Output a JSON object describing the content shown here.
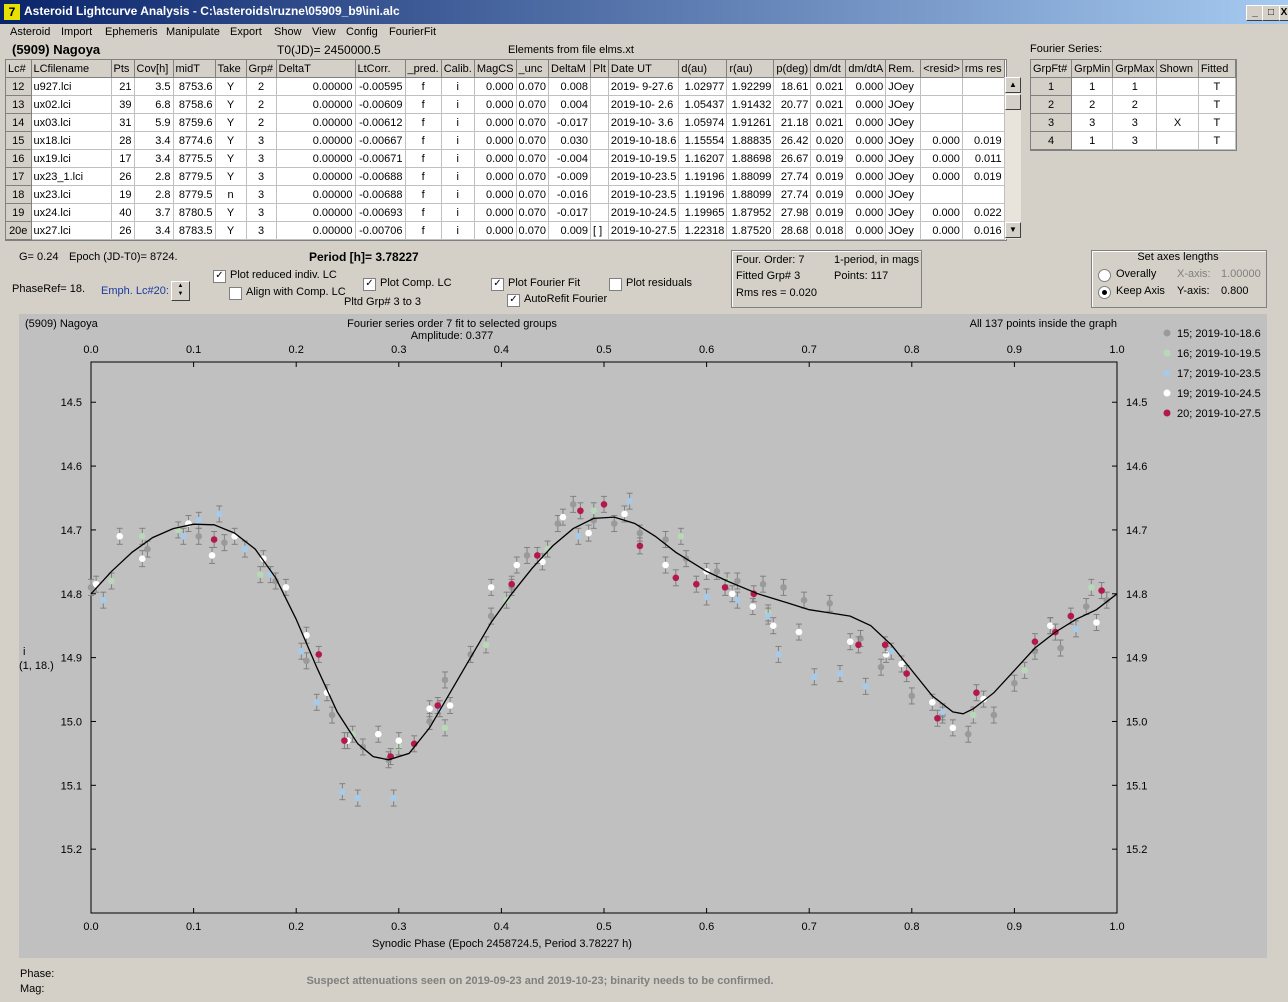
{
  "window": {
    "title": "Asteroid Lightcurve Analysis - C:\\asteroids\\ruzne\\05909_b9\\ini.alc",
    "icon_glyph": "7",
    "btn_min": "_",
    "btn_max": "□",
    "btn_close": "X"
  },
  "menu": [
    "Asteroid",
    "Import",
    "Ephemeris",
    "Manipulate",
    "Export",
    "Show",
    "View",
    "Config",
    "FourierFit"
  ],
  "header": {
    "asteroid_name": "(5909) Nagoya",
    "t0": "T0(JD)= 2450000.5",
    "elements": "Elements from file elms.xt",
    "fourier_series_label": "Fourier Series:"
  },
  "lc_table": {
    "columns": [
      "Lc#",
      "LCfilename",
      "Pts",
      "Cov[h]",
      "midT",
      "Take",
      "Grp#",
      "DeltaT",
      "LtCorr.",
      "_pred.",
      "Calib.",
      "MagCS",
      "_unc",
      "DeltaM",
      "Plt",
      "Date UT",
      "d(au)",
      "r(au)",
      "p(deg)",
      "dm/dt",
      "dm/dtA",
      "Rem.",
      "<resid>",
      "rms res"
    ],
    "rows": [
      [
        "12",
        "u927.lci",
        "21",
        "3.5",
        "8753.6",
        "Y",
        "2",
        "0.00000",
        "-0.00595",
        "f",
        "i",
        "0.000",
        "0.070",
        "0.008",
        "",
        "2019- 9-27.6",
        "1.02977",
        "1.92299",
        "18.61",
        "0.021",
        "0.000",
        "JOey",
        "",
        ""
      ],
      [
        "13",
        "ux02.lci",
        "39",
        "6.8",
        "8758.6",
        "Y",
        "2",
        "0.00000",
        "-0.00609",
        "f",
        "i",
        "0.000",
        "0.070",
        "0.004",
        "",
        "2019-10- 2.6",
        "1.05437",
        "1.91432",
        "20.77",
        "0.021",
        "0.000",
        "JOey",
        "",
        ""
      ],
      [
        "14",
        "ux03.lci",
        "31",
        "5.9",
        "8759.6",
        "Y",
        "2",
        "0.00000",
        "-0.00612",
        "f",
        "i",
        "0.000",
        "0.070",
        "-0.017",
        "",
        "2019-10- 3.6",
        "1.05974",
        "1.91261",
        "21.18",
        "0.021",
        "0.000",
        "JOey",
        "",
        ""
      ],
      [
        "15",
        "ux18.lci",
        "28",
        "3.4",
        "8774.6",
        "Y",
        "3",
        "0.00000",
        "-0.00667",
        "f",
        "i",
        "0.000",
        "0.070",
        "0.030",
        "",
        "2019-10-18.6",
        "1.15554",
        "1.88835",
        "26.42",
        "0.020",
        "0.000",
        "JOey",
        "0.000",
        "0.019"
      ],
      [
        "16",
        "ux19.lci",
        "17",
        "3.4",
        "8775.5",
        "Y",
        "3",
        "0.00000",
        "-0.00671",
        "f",
        "i",
        "0.000",
        "0.070",
        "-0.004",
        "",
        "2019-10-19.5",
        "1.16207",
        "1.88698",
        "26.67",
        "0.019",
        "0.000",
        "JOey",
        "0.000",
        "0.011"
      ],
      [
        "17",
        "ux23_1.lci",
        "26",
        "2.8",
        "8779.5",
        "Y",
        "3",
        "0.00000",
        "-0.00688",
        "f",
        "i",
        "0.000",
        "0.070",
        "-0.009",
        "",
        "2019-10-23.5",
        "1.19196",
        "1.88099",
        "27.74",
        "0.019",
        "0.000",
        "JOey",
        "0.000",
        "0.019"
      ],
      [
        "18",
        "ux23.lci",
        "19",
        "2.8",
        "8779.5",
        "n",
        "3",
        "0.00000",
        "-0.00688",
        "f",
        "i",
        "0.000",
        "0.070",
        "-0.016",
        "",
        "2019-10-23.5",
        "1.19196",
        "1.88099",
        "27.74",
        "0.019",
        "0.000",
        "JOey",
        "",
        ""
      ],
      [
        "19",
        "ux24.lci",
        "40",
        "3.7",
        "8780.5",
        "Y",
        "3",
        "0.00000",
        "-0.00693",
        "f",
        "i",
        "0.000",
        "0.070",
        "-0.017",
        "",
        "2019-10-24.5",
        "1.19965",
        "1.87952",
        "27.98",
        "0.019",
        "0.000",
        "JOey",
        "0.000",
        "0.022"
      ],
      [
        "20e",
        "ux27.lci",
        "26",
        "3.4",
        "8783.5",
        "Y",
        "3",
        "0.00000",
        "-0.00706",
        "f",
        "i",
        "0.000",
        "0.070",
        "0.009",
        "[ ]",
        "2019-10-27.5",
        "1.22318",
        "1.87520",
        "28.68",
        "0.018",
        "0.000",
        "JOey",
        "0.000",
        "0.016"
      ]
    ]
  },
  "fourier_table": {
    "columns": [
      "GrpFt#",
      "GrpMin",
      "GrpMax",
      "Shown",
      "Fitted"
    ],
    "rows": [
      [
        "1",
        "1",
        "1",
        "",
        "T"
      ],
      [
        "2",
        "2",
        "2",
        "",
        "T"
      ],
      [
        "3",
        "3",
        "3",
        "X",
        "T"
      ],
      [
        "4",
        "1",
        "3",
        "",
        "T"
      ]
    ]
  },
  "controls": {
    "g_value": "G= 0.24",
    "epoch": "Epoch (JD-T0)= 8724.",
    "period": "Period [h]= 3.78227",
    "phase_ref": "PhaseRef= 18.",
    "emph_lc": "Emph. Lc#20:",
    "plot_reduced": "Plot reduced indiv. LC",
    "align_comp": "Align with Comp. LC",
    "plot_comp": "Plot Comp. LC",
    "plotted_grp": "Pltd Grp#  3  to   3",
    "plot_fourier": "Plot Fourier Fit",
    "autorefit": "AutoRefit Fourier",
    "plot_residuals": "Plot residuals"
  },
  "fit_info": {
    "order": "Four. Order:  7",
    "one_period": "1-period,  in mags",
    "fitted_grp": "Fitted Grp# 3",
    "points": "Points: 117",
    "rms": "Rms res     = 0.020"
  },
  "axes_box": {
    "title": "Set axes lengths",
    "overally": "Overally",
    "keep_axis": "Keep Axis",
    "x_label": "X-axis:",
    "x_value": "1.00000",
    "y_label": "Y-axis:",
    "y_value": "0.800",
    "selected": "keep_axis"
  },
  "plot": {
    "left_title": "(5909) Nagoya",
    "center_title": "Fourier series order 7 fit to selected groups",
    "amplitude": "Amplitude: 0.377",
    "right_title": "All 137 points inside the graph",
    "y_axis_label": "i",
    "y_axis_label2": "(1, 18.)",
    "x_axis_label": "Synodic Phase (Epoch 2458724.5, Period 3.78227 h)"
  },
  "chart_data": {
    "type": "scatter",
    "x_range": [
      0.0,
      1.0
    ],
    "y_range": [
      15.3,
      14.437
    ],
    "x_ticks": [
      "0.0",
      "0.1",
      "0.2",
      "0.3",
      "0.4",
      "0.5",
      "0.6",
      "0.7",
      "0.8",
      "0.9",
      "1.0"
    ],
    "y_ticks": [
      "14.5",
      "14.6",
      "14.7",
      "14.8",
      "14.9",
      "15.0",
      "15.1",
      "15.2"
    ],
    "legend_position": "right",
    "series": [
      {
        "name": "15; 2019-10-18.6",
        "color": "#9a9a9a",
        "points": [
          [
            0.0,
            14.79
          ],
          [
            0.055,
            14.73
          ],
          [
            0.105,
            14.71
          ],
          [
            0.13,
            14.72
          ],
          [
            0.18,
            14.78
          ],
          [
            0.21,
            14.905
          ],
          [
            0.235,
            14.99
          ],
          [
            0.265,
            15.04
          ],
          [
            0.29,
            15.06
          ],
          [
            0.33,
            15.0
          ],
          [
            0.345,
            14.935
          ],
          [
            0.37,
            14.895
          ],
          [
            0.39,
            14.835
          ],
          [
            0.41,
            14.79
          ],
          [
            0.425,
            14.74
          ],
          [
            0.455,
            14.69
          ],
          [
            0.47,
            14.66
          ],
          [
            0.49,
            14.685
          ],
          [
            0.51,
            14.69
          ],
          [
            0.535,
            14.705
          ],
          [
            0.56,
            14.715
          ],
          [
            0.58,
            14.745
          ],
          [
            0.61,
            14.765
          ],
          [
            0.63,
            14.78
          ],
          [
            0.655,
            14.785
          ],
          [
            0.675,
            14.79
          ],
          [
            0.695,
            14.81
          ],
          [
            0.72,
            14.815
          ],
          [
            0.75,
            14.87
          ],
          [
            0.77,
            14.915
          ],
          [
            0.8,
            14.96
          ],
          [
            0.83,
            14.99
          ],
          [
            0.855,
            15.02
          ],
          [
            0.88,
            14.99
          ],
          [
            0.9,
            14.94
          ],
          [
            0.92,
            14.89
          ],
          [
            0.945,
            14.885
          ],
          [
            0.97,
            14.82
          ],
          [
            0.99,
            14.81
          ]
        ]
      },
      {
        "name": "16; 2019-10-19.5",
        "color": "#b8d8b8",
        "points": [
          [
            0.02,
            14.78
          ],
          [
            0.05,
            14.71
          ],
          [
            0.085,
            14.7
          ],
          [
            0.165,
            14.77
          ],
          [
            0.255,
            15.02
          ],
          [
            0.3,
            15.04
          ],
          [
            0.345,
            15.01
          ],
          [
            0.385,
            14.88
          ],
          [
            0.405,
            14.81
          ],
          [
            0.445,
            14.73
          ],
          [
            0.49,
            14.67
          ],
          [
            0.575,
            14.71
          ],
          [
            0.62,
            14.78
          ],
          [
            0.66,
            14.83
          ],
          [
            0.86,
            14.99
          ],
          [
            0.91,
            14.92
          ],
          [
            0.935,
            14.85
          ],
          [
            0.975,
            14.79
          ]
        ]
      },
      {
        "name": "17; 2019-10-23.5",
        "color": "#a6cae8",
        "points": [
          [
            0.012,
            14.81
          ],
          [
            0.09,
            14.71
          ],
          [
            0.105,
            14.685
          ],
          [
            0.125,
            14.675
          ],
          [
            0.15,
            14.73
          ],
          [
            0.175,
            14.77
          ],
          [
            0.205,
            14.89
          ],
          [
            0.22,
            14.97
          ],
          [
            0.245,
            15.11
          ],
          [
            0.26,
            15.12
          ],
          [
            0.295,
            15.12
          ],
          [
            0.34,
            14.98
          ],
          [
            0.475,
            14.71
          ],
          [
            0.525,
            14.655
          ],
          [
            0.6,
            14.805
          ],
          [
            0.63,
            14.81
          ],
          [
            0.66,
            14.835
          ],
          [
            0.67,
            14.895
          ],
          [
            0.705,
            14.93
          ],
          [
            0.73,
            14.925
          ],
          [
            0.755,
            14.945
          ],
          [
            0.78,
            14.89
          ],
          [
            0.83,
            14.985
          ],
          [
            0.96,
            14.855
          ]
        ]
      },
      {
        "name": "19; 2019-10-24.5",
        "color": "#ffffff",
        "points": [
          [
            0.005,
            14.785
          ],
          [
            0.028,
            14.71
          ],
          [
            0.05,
            14.745
          ],
          [
            0.095,
            14.69
          ],
          [
            0.118,
            14.74
          ],
          [
            0.14,
            14.71
          ],
          [
            0.168,
            14.745
          ],
          [
            0.19,
            14.79
          ],
          [
            0.21,
            14.865
          ],
          [
            0.23,
            14.955
          ],
          [
            0.25,
            15.03
          ],
          [
            0.28,
            15.02
          ],
          [
            0.3,
            15.03
          ],
          [
            0.33,
            14.98
          ],
          [
            0.35,
            14.975
          ],
          [
            0.39,
            14.79
          ],
          [
            0.415,
            14.755
          ],
          [
            0.44,
            14.75
          ],
          [
            0.46,
            14.68
          ],
          [
            0.485,
            14.705
          ],
          [
            0.52,
            14.675
          ],
          [
            0.56,
            14.755
          ],
          [
            0.6,
            14.765
          ],
          [
            0.625,
            14.8
          ],
          [
            0.645,
            14.82
          ],
          [
            0.665,
            14.85
          ],
          [
            0.69,
            14.86
          ],
          [
            0.74,
            14.875
          ],
          [
            0.775,
            14.895
          ],
          [
            0.79,
            14.91
          ],
          [
            0.82,
            14.97
          ],
          [
            0.84,
            15.01
          ],
          [
            0.87,
            14.965
          ],
          [
            0.935,
            14.85
          ],
          [
            0.98,
            14.845
          ]
        ]
      },
      {
        "name": "20; 2019-10-27.5",
        "color": "#b3194a",
        "points": [
          [
            0.12,
            14.715
          ],
          [
            0.222,
            14.895
          ],
          [
            0.247,
            15.03
          ],
          [
            0.292,
            15.055
          ],
          [
            0.315,
            15.035
          ],
          [
            0.338,
            14.975
          ],
          [
            0.41,
            14.785
          ],
          [
            0.435,
            14.74
          ],
          [
            0.477,
            14.67
          ],
          [
            0.5,
            14.66
          ],
          [
            0.535,
            14.725
          ],
          [
            0.57,
            14.775
          ],
          [
            0.59,
            14.785
          ],
          [
            0.618,
            14.79
          ],
          [
            0.646,
            14.8
          ],
          [
            0.748,
            14.88
          ],
          [
            0.774,
            14.88
          ],
          [
            0.795,
            14.925
          ],
          [
            0.825,
            14.995
          ],
          [
            0.863,
            14.955
          ],
          [
            0.92,
            14.875
          ],
          [
            0.94,
            14.86
          ],
          [
            0.955,
            14.835
          ],
          [
            0.985,
            14.795
          ]
        ]
      }
    ],
    "fit_curve": {
      "name": "Fourier fit",
      "color": "#000000",
      "points": [
        [
          0.0,
          14.8
        ],
        [
          0.02,
          14.765
        ],
        [
          0.04,
          14.735
        ],
        [
          0.06,
          14.712
        ],
        [
          0.08,
          14.698
        ],
        [
          0.1,
          14.691
        ],
        [
          0.12,
          14.692
        ],
        [
          0.14,
          14.705
        ],
        [
          0.16,
          14.73
        ],
        [
          0.18,
          14.775
        ],
        [
          0.2,
          14.84
        ],
        [
          0.22,
          14.915
        ],
        [
          0.24,
          14.985
        ],
        [
          0.26,
          15.035
        ],
        [
          0.275,
          15.055
        ],
        [
          0.29,
          15.06
        ],
        [
          0.31,
          15.05
        ],
        [
          0.33,
          15.01
        ],
        [
          0.35,
          14.955
        ],
        [
          0.37,
          14.9
        ],
        [
          0.39,
          14.845
        ],
        [
          0.41,
          14.8
        ],
        [
          0.43,
          14.76
        ],
        [
          0.45,
          14.725
        ],
        [
          0.47,
          14.698
        ],
        [
          0.49,
          14.682
        ],
        [
          0.51,
          14.68
        ],
        [
          0.53,
          14.69
        ],
        [
          0.55,
          14.71
        ],
        [
          0.57,
          14.735
        ],
        [
          0.6,
          14.765
        ],
        [
          0.62,
          14.78
        ],
        [
          0.65,
          14.8
        ],
        [
          0.68,
          14.815
        ],
        [
          0.7,
          14.825
        ],
        [
          0.72,
          14.83
        ],
        [
          0.74,
          14.835
        ],
        [
          0.76,
          14.85
        ],
        [
          0.78,
          14.88
        ],
        [
          0.8,
          14.92
        ],
        [
          0.82,
          14.96
        ],
        [
          0.84,
          14.985
        ],
        [
          0.85,
          14.988
        ],
        [
          0.86,
          14.98
        ],
        [
          0.88,
          14.955
        ],
        [
          0.9,
          14.92
        ],
        [
          0.92,
          14.885
        ],
        [
          0.94,
          14.86
        ],
        [
          0.96,
          14.84
        ],
        [
          0.98,
          14.825
        ],
        [
          1.0,
          14.8
        ]
      ]
    }
  },
  "bottom": {
    "phase_label": "Phase:",
    "mag_label": "Mag:",
    "note": "Suspect attenuations seen on 2019-09-23 and 2019-10-23; binarity needs to be confirmed."
  }
}
